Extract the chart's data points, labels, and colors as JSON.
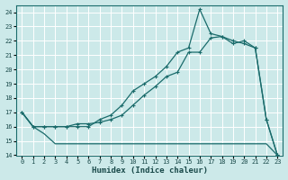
{
  "xlabel": "Humidex (Indice chaleur)",
  "background_color": "#cce9e9",
  "grid_color": "#ffffff",
  "line_color": "#1a6b6b",
  "xlim": [
    0,
    23
  ],
  "ylim": [
    14,
    24.5
  ],
  "yticks": [
    14,
    15,
    16,
    17,
    18,
    19,
    20,
    21,
    22,
    23,
    24
  ],
  "xticks": [
    0,
    1,
    2,
    3,
    4,
    5,
    6,
    7,
    8,
    9,
    10,
    11,
    12,
    13,
    14,
    15,
    16,
    17,
    18,
    19,
    20,
    21,
    22,
    23
  ],
  "line1_x": [
    0,
    1,
    2,
    3,
    4,
    5,
    6,
    7,
    8,
    9,
    10,
    11,
    12,
    13,
    14,
    15,
    16,
    17,
    18,
    19,
    20,
    21,
    22,
    23
  ],
  "line1_y": [
    17.0,
    16.0,
    15.5,
    14.8,
    14.8,
    14.8,
    14.8,
    14.8,
    14.8,
    14.8,
    14.8,
    14.8,
    14.8,
    14.8,
    14.8,
    14.8,
    14.8,
    14.8,
    14.8,
    14.8,
    14.8,
    14.8,
    14.8,
    14.0
  ],
  "line2_x": [
    0,
    1,
    2,
    3,
    4,
    5,
    6,
    7,
    8,
    9,
    10,
    11,
    12,
    13,
    14,
    15,
    16,
    17,
    18,
    19,
    20,
    21,
    22,
    23
  ],
  "line2_y": [
    17.0,
    16.0,
    16.0,
    16.0,
    16.0,
    16.2,
    16.2,
    16.3,
    16.5,
    16.8,
    17.5,
    18.2,
    18.8,
    19.5,
    19.8,
    21.2,
    21.2,
    22.2,
    22.3,
    22.0,
    21.8,
    21.5,
    16.5,
    14.0
  ],
  "line3_x": [
    0,
    1,
    2,
    3,
    4,
    5,
    6,
    7,
    8,
    9,
    10,
    11,
    12,
    13,
    14,
    15,
    16,
    17,
    18,
    19,
    20,
    21,
    22,
    23
  ],
  "line3_y": [
    17.0,
    16.0,
    16.0,
    16.0,
    16.0,
    16.0,
    16.0,
    16.5,
    16.8,
    17.5,
    18.5,
    19.0,
    19.5,
    20.2,
    21.2,
    21.5,
    24.2,
    22.5,
    22.3,
    21.8,
    22.0,
    21.5,
    16.5,
    14.0
  ]
}
